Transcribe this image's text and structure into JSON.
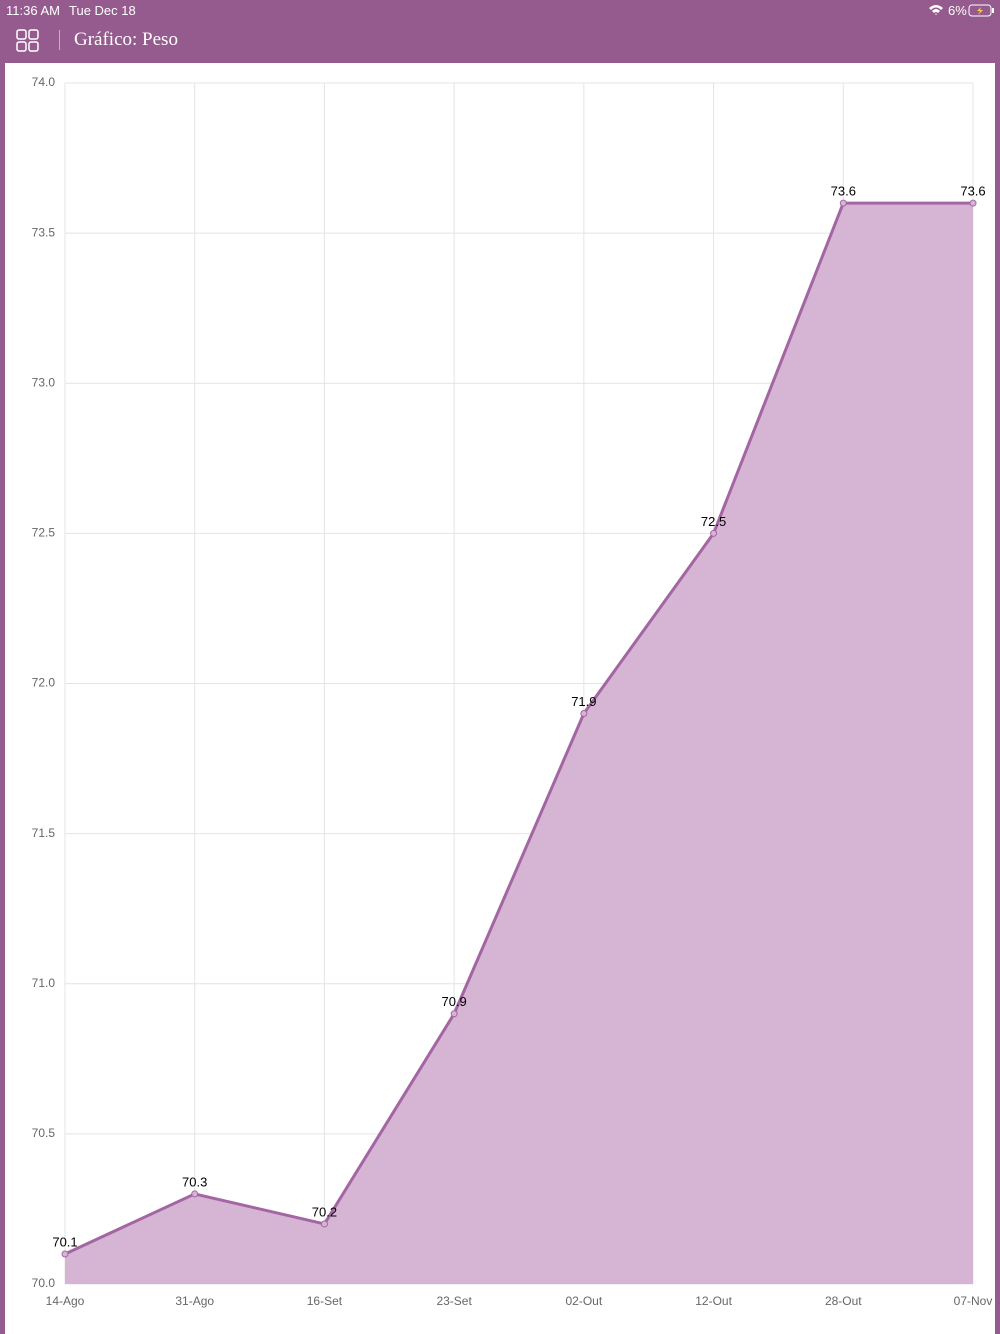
{
  "status_bar": {
    "time": "11:36 AM",
    "date": "Tue Dec 18",
    "battery": "6%"
  },
  "header": {
    "title": "Gráfico: Peso"
  },
  "chart_data": {
    "type": "line",
    "categories": [
      "14-Ago",
      "31-Ago",
      "16-Set",
      "23-Set",
      "02-Out",
      "12-Out",
      "28-Out",
      "07-Nov"
    ],
    "values": [
      70.1,
      70.3,
      70.2,
      70.9,
      71.9,
      72.5,
      73.6,
      73.6
    ],
    "color": "#a466a3",
    "fill": "#d6b4d3",
    "ylim": [
      70,
      74
    ],
    "yticks": [
      {
        "value": 70,
        "label": "70.0"
      },
      70.5,
      {
        "value": 71,
        "label": "71.0"
      },
      71.5,
      {
        "value": 72,
        "label": "72.0"
      },
      72.5,
      {
        "value": 73,
        "label": "73.0"
      },
      73.5,
      {
        "value": 74,
        "label": "74.0"
      }
    ],
    "grid": true
  }
}
